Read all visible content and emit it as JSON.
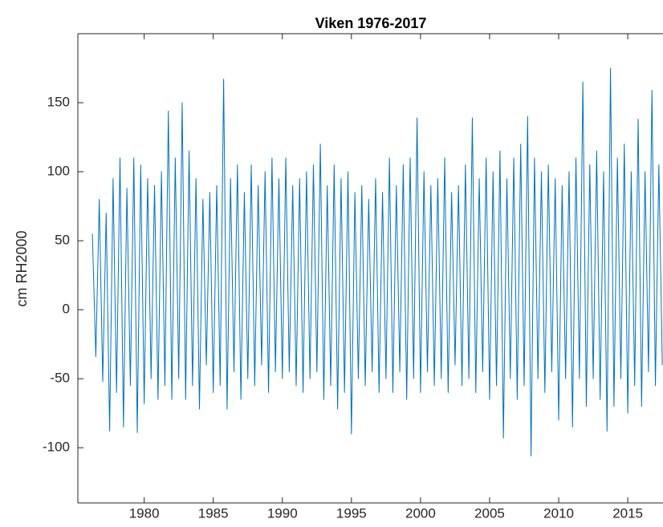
{
  "chart_data": {
    "type": "line",
    "title": "Viken 1976-2017",
    "ylabel": "cm RH2000",
    "x": [
      1976.25,
      1976.5,
      1976.75,
      1977,
      1977.25,
      1977.5,
      1977.75,
      1978,
      1978.25,
      1978.5,
      1978.75,
      1979,
      1979.25,
      1979.5,
      1979.75,
      1980,
      1980.25,
      1980.5,
      1980.75,
      1981,
      1981.25,
      1981.5,
      1981.75,
      1982,
      1982.25,
      1982.5,
      1982.75,
      1983,
      1983.25,
      1983.5,
      1983.75,
      1984,
      1984.25,
      1984.5,
      1984.75,
      1985,
      1985.25,
      1985.5,
      1985.75,
      1986,
      1986.25,
      1986.5,
      1986.75,
      1987,
      1987.25,
      1987.5,
      1987.75,
      1988,
      1988.25,
      1988.5,
      1988.75,
      1989,
      1989.25,
      1989.5,
      1989.75,
      1990,
      1990.25,
      1990.5,
      1990.75,
      1991,
      1991.25,
      1991.5,
      1991.75,
      1992,
      1992.25,
      1992.5,
      1992.75,
      1993,
      1993.25,
      1993.5,
      1993.75,
      1994,
      1994.25,
      1994.5,
      1994.75,
      1995,
      1995.25,
      1995.5,
      1995.75,
      1996,
      1996.25,
      1996.5,
      1996.75,
      1997,
      1997.25,
      1997.5,
      1997.75,
      1998,
      1998.25,
      1998.5,
      1998.75,
      1999,
      1999.25,
      1999.5,
      1999.75,
      2000,
      2000.25,
      2000.5,
      2000.75,
      2001,
      2001.25,
      2001.5,
      2001.75,
      2002,
      2002.25,
      2002.5,
      2002.75,
      2003,
      2003.25,
      2003.5,
      2003.75,
      2004,
      2004.25,
      2004.5,
      2004.75,
      2005,
      2005.25,
      2005.5,
      2005.75,
      2006,
      2006.25,
      2006.5,
      2006.75,
      2007,
      2007.25,
      2007.5,
      2007.75,
      2008,
      2008.25,
      2008.5,
      2008.75,
      2009,
      2009.25,
      2009.5,
      2009.75,
      2010,
      2010.25,
      2010.5,
      2010.75,
      2011,
      2011.25,
      2011.5,
      2011.75,
      2012,
      2012.25,
      2012.5,
      2012.75,
      2013,
      2013.25,
      2013.5,
      2013.75,
      2014,
      2014.25,
      2014.5,
      2014.75,
      2015,
      2015.25,
      2015.5,
      2015.75,
      2016,
      2016.25,
      2016.5,
      2016.75,
      2017,
      2017.25,
      2017.5
    ],
    "series": [
      {
        "color": "#0072bd",
        "values": [
          55,
          -34,
          80,
          -52,
          70,
          -88,
          95,
          -60,
          110,
          -85,
          88,
          -55,
          110,
          -89,
          105,
          -68,
          95,
          -50,
          90,
          -65,
          100,
          -55,
          144,
          -65,
          110,
          -50,
          150,
          -65,
          115,
          -55,
          95,
          -72,
          80,
          -40,
          85,
          -60,
          90,
          -55,
          167,
          -72,
          95,
          -45,
          105,
          -65,
          85,
          -50,
          105,
          -55,
          90,
          -40,
          100,
          -60,
          110,
          -45,
          95,
          -50,
          110,
          -45,
          90,
          -55,
          95,
          -60,
          100,
          -50,
          105,
          -45,
          120,
          -65,
          90,
          -55,
          105,
          -72,
          95,
          -60,
          100,
          -90,
          85,
          -50,
          90,
          -55,
          80,
          -45,
          95,
          -60,
          85,
          -50,
          110,
          -60,
          90,
          -45,
          105,
          -65,
          110,
          -50,
          139,
          -60,
          100,
          -45,
          90,
          -55,
          95,
          -50,
          110,
          -60,
          85,
          -40,
          90,
          -55,
          105,
          -50,
          139,
          -60,
          95,
          -45,
          110,
          -65,
          100,
          -55,
          115,
          -93,
          95,
          -50,
          110,
          -65,
          120,
          -55,
          140,
          -106,
          110,
          -50,
          100,
          -60,
          105,
          -45,
          95,
          -80,
          90,
          -50,
          100,
          -85,
          110,
          -50,
          165,
          -70,
          105,
          -50,
          115,
          -65,
          100,
          -88,
          175,
          -70,
          110,
          -50,
          120,
          -75,
          100,
          -55,
          138,
          -70,
          100,
          -45,
          159,
          -55,
          105,
          -40
        ]
      }
    ],
    "xlim": [
      1975.2,
      2017.55
    ],
    "ylim": [
      -140,
      200
    ],
    "xticks": [
      1980,
      1985,
      1990,
      1995,
      2000,
      2005,
      2010,
      2015
    ],
    "yticks": [
      -100,
      -50,
      0,
      50,
      100,
      150
    ]
  }
}
